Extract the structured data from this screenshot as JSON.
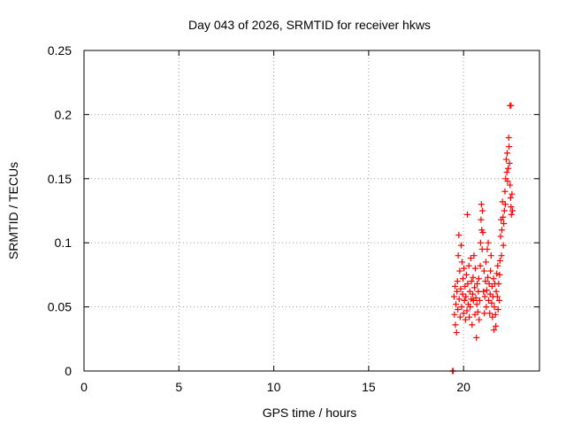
{
  "chart_data": {
    "type": "scatter",
    "title": "Day 043 of 2026, SRMTID for receiver hkws",
    "xlabel": "GPS time / hours",
    "ylabel": "SRMTID / TECUs",
    "xlim": [
      0,
      24
    ],
    "ylim": [
      0,
      0.25
    ],
    "xticks": [
      0,
      5,
      10,
      15,
      20
    ],
    "yticks": [
      0,
      0.05,
      0.1,
      0.15,
      0.2,
      0.25
    ],
    "x_tick_labels": [
      "0",
      "5",
      "10",
      "15",
      "20"
    ],
    "y_tick_labels": [
      "0",
      "0.05",
      "0.1",
      "0.15",
      "0.2",
      "0.25"
    ],
    "grid": true,
    "marker": "+",
    "marker_color": "#ff0000",
    "series": [
      {
        "name": "SRMTID",
        "points": [
          [
            19.42,
            0.0
          ],
          [
            19.45,
            0.0
          ],
          [
            19.5,
            0.058
          ],
          [
            19.52,
            0.044
          ],
          [
            19.55,
            0.066
          ],
          [
            19.57,
            0.036
          ],
          [
            19.6,
            0.052
          ],
          [
            19.63,
            0.03
          ],
          [
            19.65,
            0.062
          ],
          [
            19.68,
            0.07
          ],
          [
            19.7,
            0.048
          ],
          [
            19.72,
            0.09
          ],
          [
            19.75,
            0.106
          ],
          [
            19.77,
            0.056
          ],
          [
            19.8,
            0.078
          ],
          [
            19.82,
            0.042
          ],
          [
            19.85,
            0.064
          ],
          [
            19.88,
            0.098
          ],
          [
            19.9,
            0.05
          ],
          [
            19.92,
            0.085
          ],
          [
            19.95,
            0.06
          ],
          [
            19.97,
            0.072
          ],
          [
            20.0,
            0.045
          ],
          [
            20.02,
            0.08
          ],
          [
            20.05,
            0.055
          ],
          [
            20.08,
            0.066
          ],
          [
            20.1,
            0.04
          ],
          [
            20.12,
            0.058
          ],
          [
            20.15,
            0.075
          ],
          [
            20.18,
            0.047
          ],
          [
            20.2,
            0.122
          ],
          [
            20.22,
            0.068
          ],
          [
            20.25,
            0.052
          ],
          [
            20.28,
            0.082
          ],
          [
            20.3,
            0.042
          ],
          [
            20.33,
            0.062
          ],
          [
            20.35,
            0.05
          ],
          [
            20.38,
            0.088
          ],
          [
            20.4,
            0.056
          ],
          [
            20.42,
            0.07
          ],
          [
            20.45,
            0.036
          ],
          [
            20.48,
            0.06
          ],
          [
            20.5,
            0.073
          ],
          [
            20.52,
            0.055
          ],
          [
            20.55,
            0.09
          ],
          [
            20.58,
            0.065
          ],
          [
            20.6,
            0.044
          ],
          [
            20.62,
            0.08
          ],
          [
            20.65,
            0.057
          ],
          [
            20.68,
            0.026
          ],
          [
            20.7,
            0.052
          ],
          [
            20.72,
            0.068
          ],
          [
            20.75,
            0.046
          ],
          [
            20.78,
            0.062
          ],
          [
            20.8,
            0.072
          ],
          [
            20.82,
            0.04
          ],
          [
            20.85,
            0.055
          ],
          [
            20.88,
            0.082
          ],
          [
            20.9,
            0.1
          ],
          [
            20.92,
            0.118
          ],
          [
            20.94,
            0.13
          ],
          [
            20.96,
            0.11
          ],
          [
            20.98,
            0.095
          ],
          [
            21.0,
            0.125
          ],
          [
            21.02,
            0.108
          ],
          [
            21.05,
            0.062
          ],
          [
            21.08,
            0.078
          ],
          [
            21.1,
            0.045
          ],
          [
            21.12,
            0.058
          ],
          [
            21.15,
            0.07
          ],
          [
            21.18,
            0.085
          ],
          [
            21.2,
            0.05
          ],
          [
            21.22,
            0.063
          ],
          [
            21.25,
            0.095
          ],
          [
            21.28,
            0.073
          ],
          [
            21.3,
            0.1
          ],
          [
            21.32,
            0.055
          ],
          [
            21.35,
            0.068
          ],
          [
            21.38,
            0.045
          ],
          [
            21.4,
            0.06
          ],
          [
            21.42,
            0.078
          ],
          [
            21.45,
            0.09
          ],
          [
            21.48,
            0.053
          ],
          [
            21.5,
            0.066
          ],
          [
            21.52,
            0.042
          ],
          [
            21.55,
            0.058
          ],
          [
            21.58,
            0.072
          ],
          [
            21.6,
            0.032
          ],
          [
            21.62,
            0.05
          ],
          [
            21.65,
            0.068
          ],
          [
            21.68,
            0.044
          ],
          [
            21.7,
            0.035
          ],
          [
            21.72,
            0.062
          ],
          [
            21.75,
            0.076
          ],
          [
            21.78,
            0.058
          ],
          [
            21.8,
            0.082
          ],
          [
            21.82,
            0.048
          ],
          [
            21.85,
            0.068
          ],
          [
            21.88,
            0.055
          ],
          [
            21.9,
            0.075
          ],
          [
            21.92,
            0.086
          ],
          [
            21.95,
            0.105
          ],
          [
            21.98,
            0.118
          ],
          [
            22.0,
            0.09
          ],
          [
            22.02,
            0.11
          ],
          [
            22.05,
            0.132
          ],
          [
            22.08,
            0.12
          ],
          [
            22.1,
            0.098
          ],
          [
            22.12,
            0.115
          ],
          [
            22.15,
            0.125
          ],
          [
            22.18,
            0.14
          ],
          [
            22.2,
            0.13
          ],
          [
            22.22,
            0.15
          ],
          [
            22.25,
            0.165
          ],
          [
            22.28,
            0.155
          ],
          [
            22.3,
            0.17
          ],
          [
            22.32,
            0.148
          ],
          [
            22.35,
            0.158
          ],
          [
            22.38,
            0.182
          ],
          [
            22.4,
            0.175
          ],
          [
            22.42,
            0.162
          ],
          [
            22.45,
            0.145
          ],
          [
            22.48,
            0.135
          ],
          [
            22.5,
            0.128
          ],
          [
            22.52,
            0.122
          ],
          [
            22.55,
            0.138
          ],
          [
            22.58,
            0.125
          ],
          [
            22.45,
            0.207
          ],
          [
            22.5,
            0.207
          ]
        ]
      }
    ]
  }
}
